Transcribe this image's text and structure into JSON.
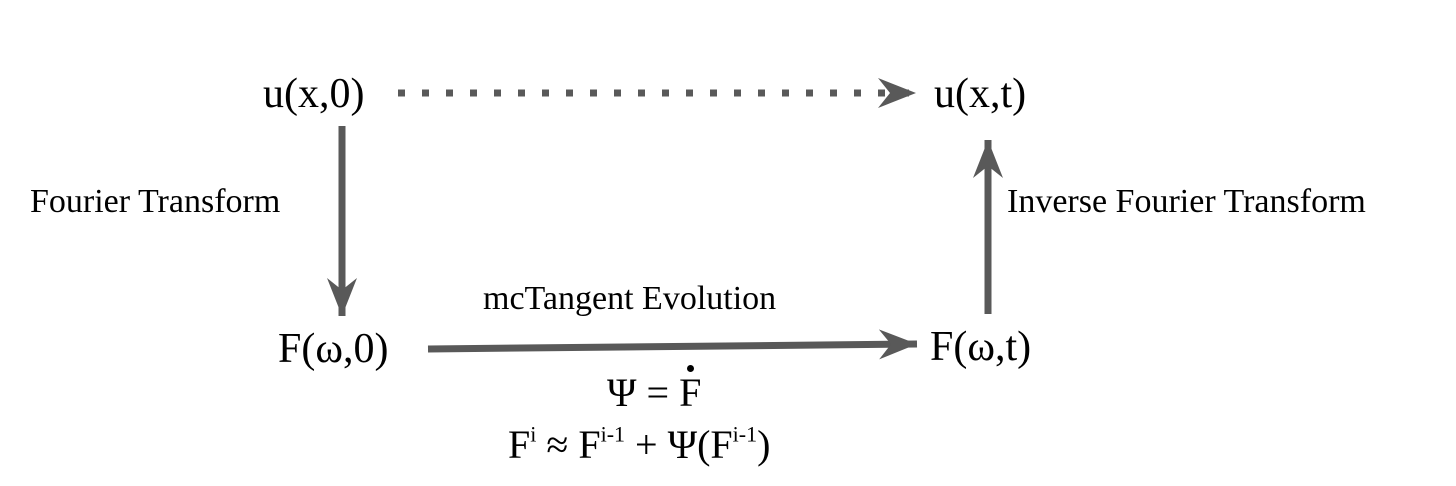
{
  "nodes": {
    "u_x0": "u(x,0)",
    "u_xt": "u(x,t)",
    "f_w0": "F(ω,0)",
    "f_wt": "F(ω,t)"
  },
  "edges": {
    "forward_transform": "Fourier Transform",
    "inverse_transform": "Inverse Fourier Transform",
    "evolution": "mcTangent Evolution"
  },
  "equations": {
    "psi_lhs": "Ψ = ",
    "psi_rhs": "F",
    "update_F": "F",
    "update_i": "i",
    "update_approx": " ≈ F",
    "update_im1_a": "i-1",
    "update_plus": " + Ψ(F",
    "update_im1_b": "i-1",
    "update_close": ")"
  },
  "colors": {
    "arrow": "#595959",
    "text": "#000000",
    "background": "#ffffff"
  }
}
